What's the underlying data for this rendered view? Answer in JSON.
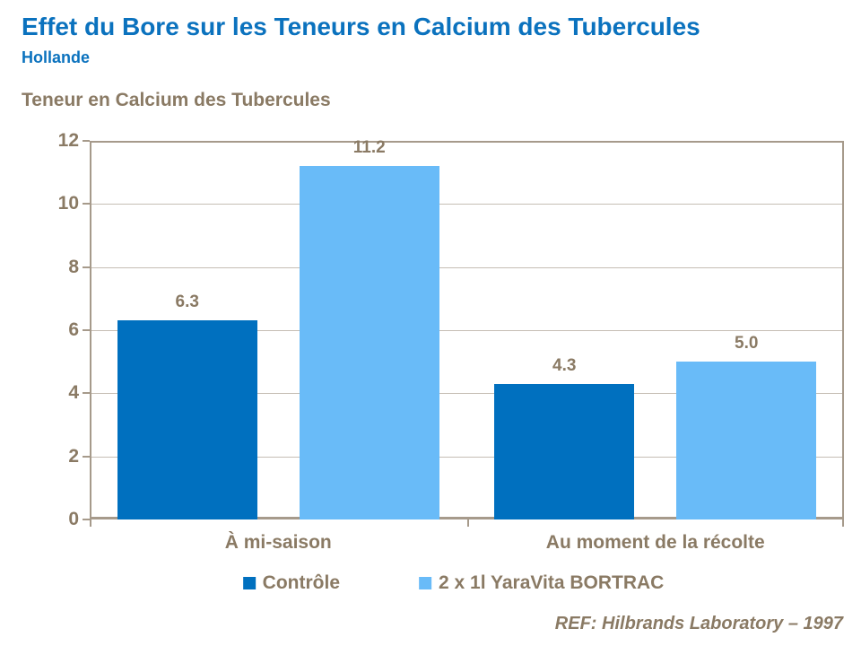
{
  "header": {
    "title": "Effet du Bore sur les Teneurs en Calcium des Tubercules",
    "subtitle": "Hollande"
  },
  "chart_heading": "Teneur en Calcium des Tubercules",
  "footer": {
    "reference": "REF: Hilbrands Laboratory – 1997"
  },
  "colors": {
    "title_blue": "#0B72BE",
    "text_taupe": "#8A7A64",
    "axis_frame": "#A69A8B",
    "gridline": "#C6BEB4",
    "series_dark_blue": "#0070BF",
    "series_light_blue": "#69BBF8",
    "background": "#FFFFFF"
  },
  "chart_data": {
    "type": "bar",
    "title": "Teneur en Calcium des Tubercules",
    "categories": [
      "À mi-saison",
      "Au moment de la récolte"
    ],
    "series": [
      {
        "name": "Contrôle",
        "color": "#0070BF",
        "values": [
          6.3,
          4.3
        ]
      },
      {
        "name": "2 x 1l YaraVita BORTRAC",
        "color": "#69BBF8",
        "values": [
          11.2,
          5.0
        ]
      }
    ],
    "value_labels": [
      [
        "6.3",
        "4.3"
      ],
      [
        "11.2",
        "5.0"
      ]
    ],
    "xlabel": "",
    "ylabel": "",
    "ylim": [
      0,
      12
    ],
    "yticks": [
      0,
      2,
      4,
      6,
      8,
      10,
      12
    ],
    "grid": true,
    "legend_position": "bottom"
  }
}
